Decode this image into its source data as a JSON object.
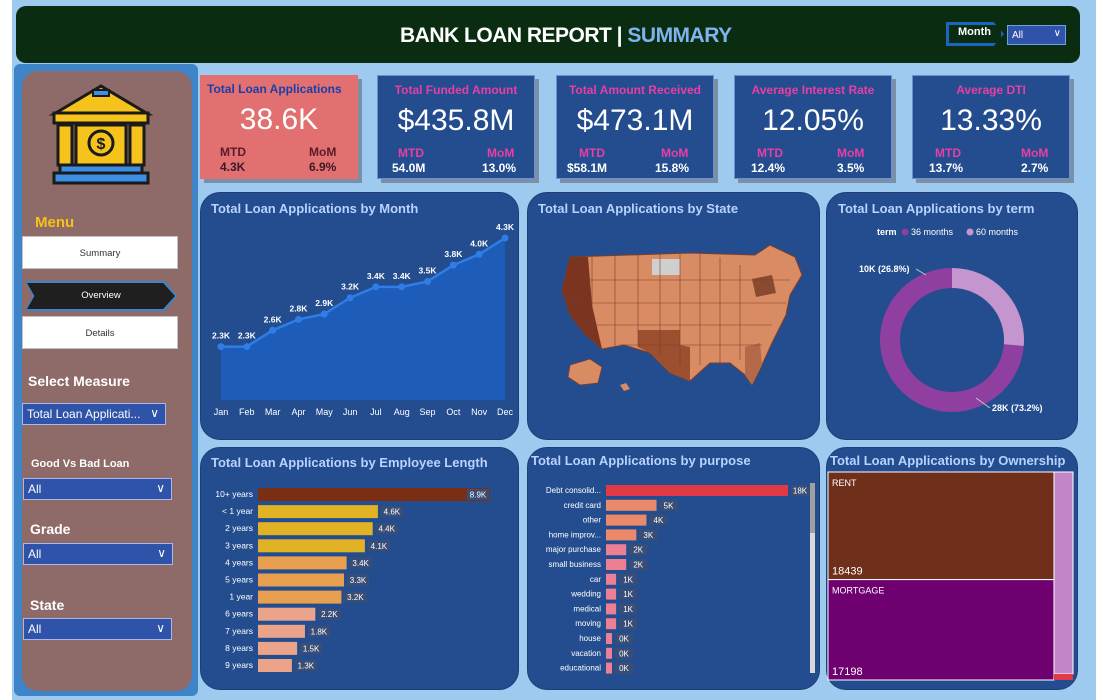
{
  "header": {
    "title_main": "BANK LOAN REPORT | ",
    "title_accent": "SUMMARY",
    "month_label": "Month",
    "month_value": "All"
  },
  "sidebar": {
    "menu_label": "Menu",
    "nav": {
      "summary": "Summary",
      "overview": "Overview",
      "details": "Details"
    },
    "select_measure": {
      "label": "Select Measure",
      "value": "Total Loan Applicati..."
    },
    "good_bad": {
      "label": "Good Vs Bad Loan",
      "value": "All"
    },
    "grade": {
      "label": "Grade",
      "value": "All"
    },
    "state": {
      "label": "State",
      "value": "All"
    }
  },
  "kpis": {
    "apps": {
      "title": "Total Loan Applications",
      "value": "38.6K",
      "mtd_label": "MTD",
      "mtd": "4.3K",
      "mom_label": "MoM",
      "mom": "6.9%"
    },
    "funded": {
      "title": "Total Funded Amount",
      "value": "$435.8M",
      "mtd_label": "MTD",
      "mtd": "54.0M",
      "mom_label": "MoM",
      "mom": "13.0%"
    },
    "received": {
      "title": "Total Amount Received",
      "value": "$473.1M",
      "mtd_label": "MTD",
      "mtd": "$58.1M",
      "mom_label": "MoM",
      "mom": "15.8%"
    },
    "interest": {
      "title": "Average Interest Rate",
      "value": "12.05%",
      "mtd_label": "MTD",
      "mtd": "12.4%",
      "mom_label": "MoM",
      "mom": "3.5%"
    },
    "dti": {
      "title": "Average DTI",
      "value": "13.33%",
      "mtd_label": "MTD",
      "mtd": "13.7%",
      "mom_label": "MoM",
      "mom": "2.7%"
    }
  },
  "colors": {
    "panel": "#234d8e",
    "line": "#2f7de6",
    "area": "#1d5cb8",
    "term_36": "#8e3fa0",
    "term_60": "#c495cf",
    "emp_top": "#7a2e12",
    "emp_mid_gold": "#e0b224",
    "emp_mid_orange": "#e8a050",
    "emp_low": "#eba48a",
    "purpose_top": "#e03a46",
    "purpose_pink": "#ec7f93",
    "rent": "#6f2f1a",
    "mortgage": "#6f006f",
    "own_other": "#c185c8"
  },
  "chart_data": [
    {
      "type": "area",
      "title": "Total Loan Applications by Month",
      "categories": [
        "Jan",
        "Feb",
        "Mar",
        "Apr",
        "May",
        "Jun",
        "Jul",
        "Aug",
        "Sep",
        "Oct",
        "Nov",
        "Dec"
      ],
      "values": [
        2.3,
        2.3,
        2.6,
        2.8,
        2.9,
        3.2,
        3.4,
        3.4,
        3.5,
        3.8,
        4.0,
        4.3
      ],
      "labels": [
        "2.3K",
        "2.3K",
        "2.6K",
        "2.8K",
        "2.9K",
        "3.2K",
        "3.4K",
        "3.4K",
        "3.5K",
        "3.8K",
        "4.0K",
        "4.3K"
      ],
      "unit": "K"
    },
    {
      "type": "map",
      "title": "Total Loan Applications by State"
    },
    {
      "type": "pie",
      "title": "Total Loan Applications by term",
      "legend_title": "term",
      "legend_position": "top",
      "slices": [
        {
          "name": "36 months",
          "value": 28,
          "label": "28K (73.2%)"
        },
        {
          "name": "60 months",
          "value": 10,
          "label": "10K (26.8%)"
        }
      ]
    },
    {
      "type": "bar",
      "orientation": "horizontal",
      "title": "Total Loan Applications by Employee Length",
      "categories": [
        "10+ years",
        "< 1 year",
        "2 years",
        "3 years",
        "4 years",
        "5 years",
        "1 year",
        "6 years",
        "7 years",
        "8 years",
        "9 years"
      ],
      "values": [
        8.9,
        4.6,
        4.4,
        4.1,
        3.4,
        3.3,
        3.2,
        2.2,
        1.8,
        1.5,
        1.3
      ],
      "labels": [
        "8.9K",
        "4.6K",
        "4.4K",
        "4.1K",
        "3.4K",
        "3.3K",
        "3.2K",
        "2.2K",
        "1.8K",
        "1.5K",
        "1.3K"
      ]
    },
    {
      "type": "bar",
      "orientation": "horizontal",
      "title": "Total Loan Applications by purpose",
      "categories": [
        "Debt consolid...",
        "credit card",
        "other",
        "home improv...",
        "major purchase",
        "small business",
        "car",
        "wedding",
        "medical",
        "moving",
        "house",
        "vacation",
        "educational"
      ],
      "values": [
        18,
        5,
        4,
        3,
        2,
        2,
        1,
        1,
        1,
        1,
        0,
        0,
        0
      ],
      "labels": [
        "18K",
        "5K",
        "4K",
        "3K",
        "2K",
        "2K",
        "1K",
        "1K",
        "1K",
        "1K",
        "0K",
        "0K",
        "0K"
      ]
    },
    {
      "type": "treemap",
      "title": "Total Loan Applications by Ownership",
      "items": [
        {
          "name": "RENT",
          "value": 18439
        },
        {
          "name": "MORTGAGE",
          "value": 17198
        }
      ]
    }
  ]
}
